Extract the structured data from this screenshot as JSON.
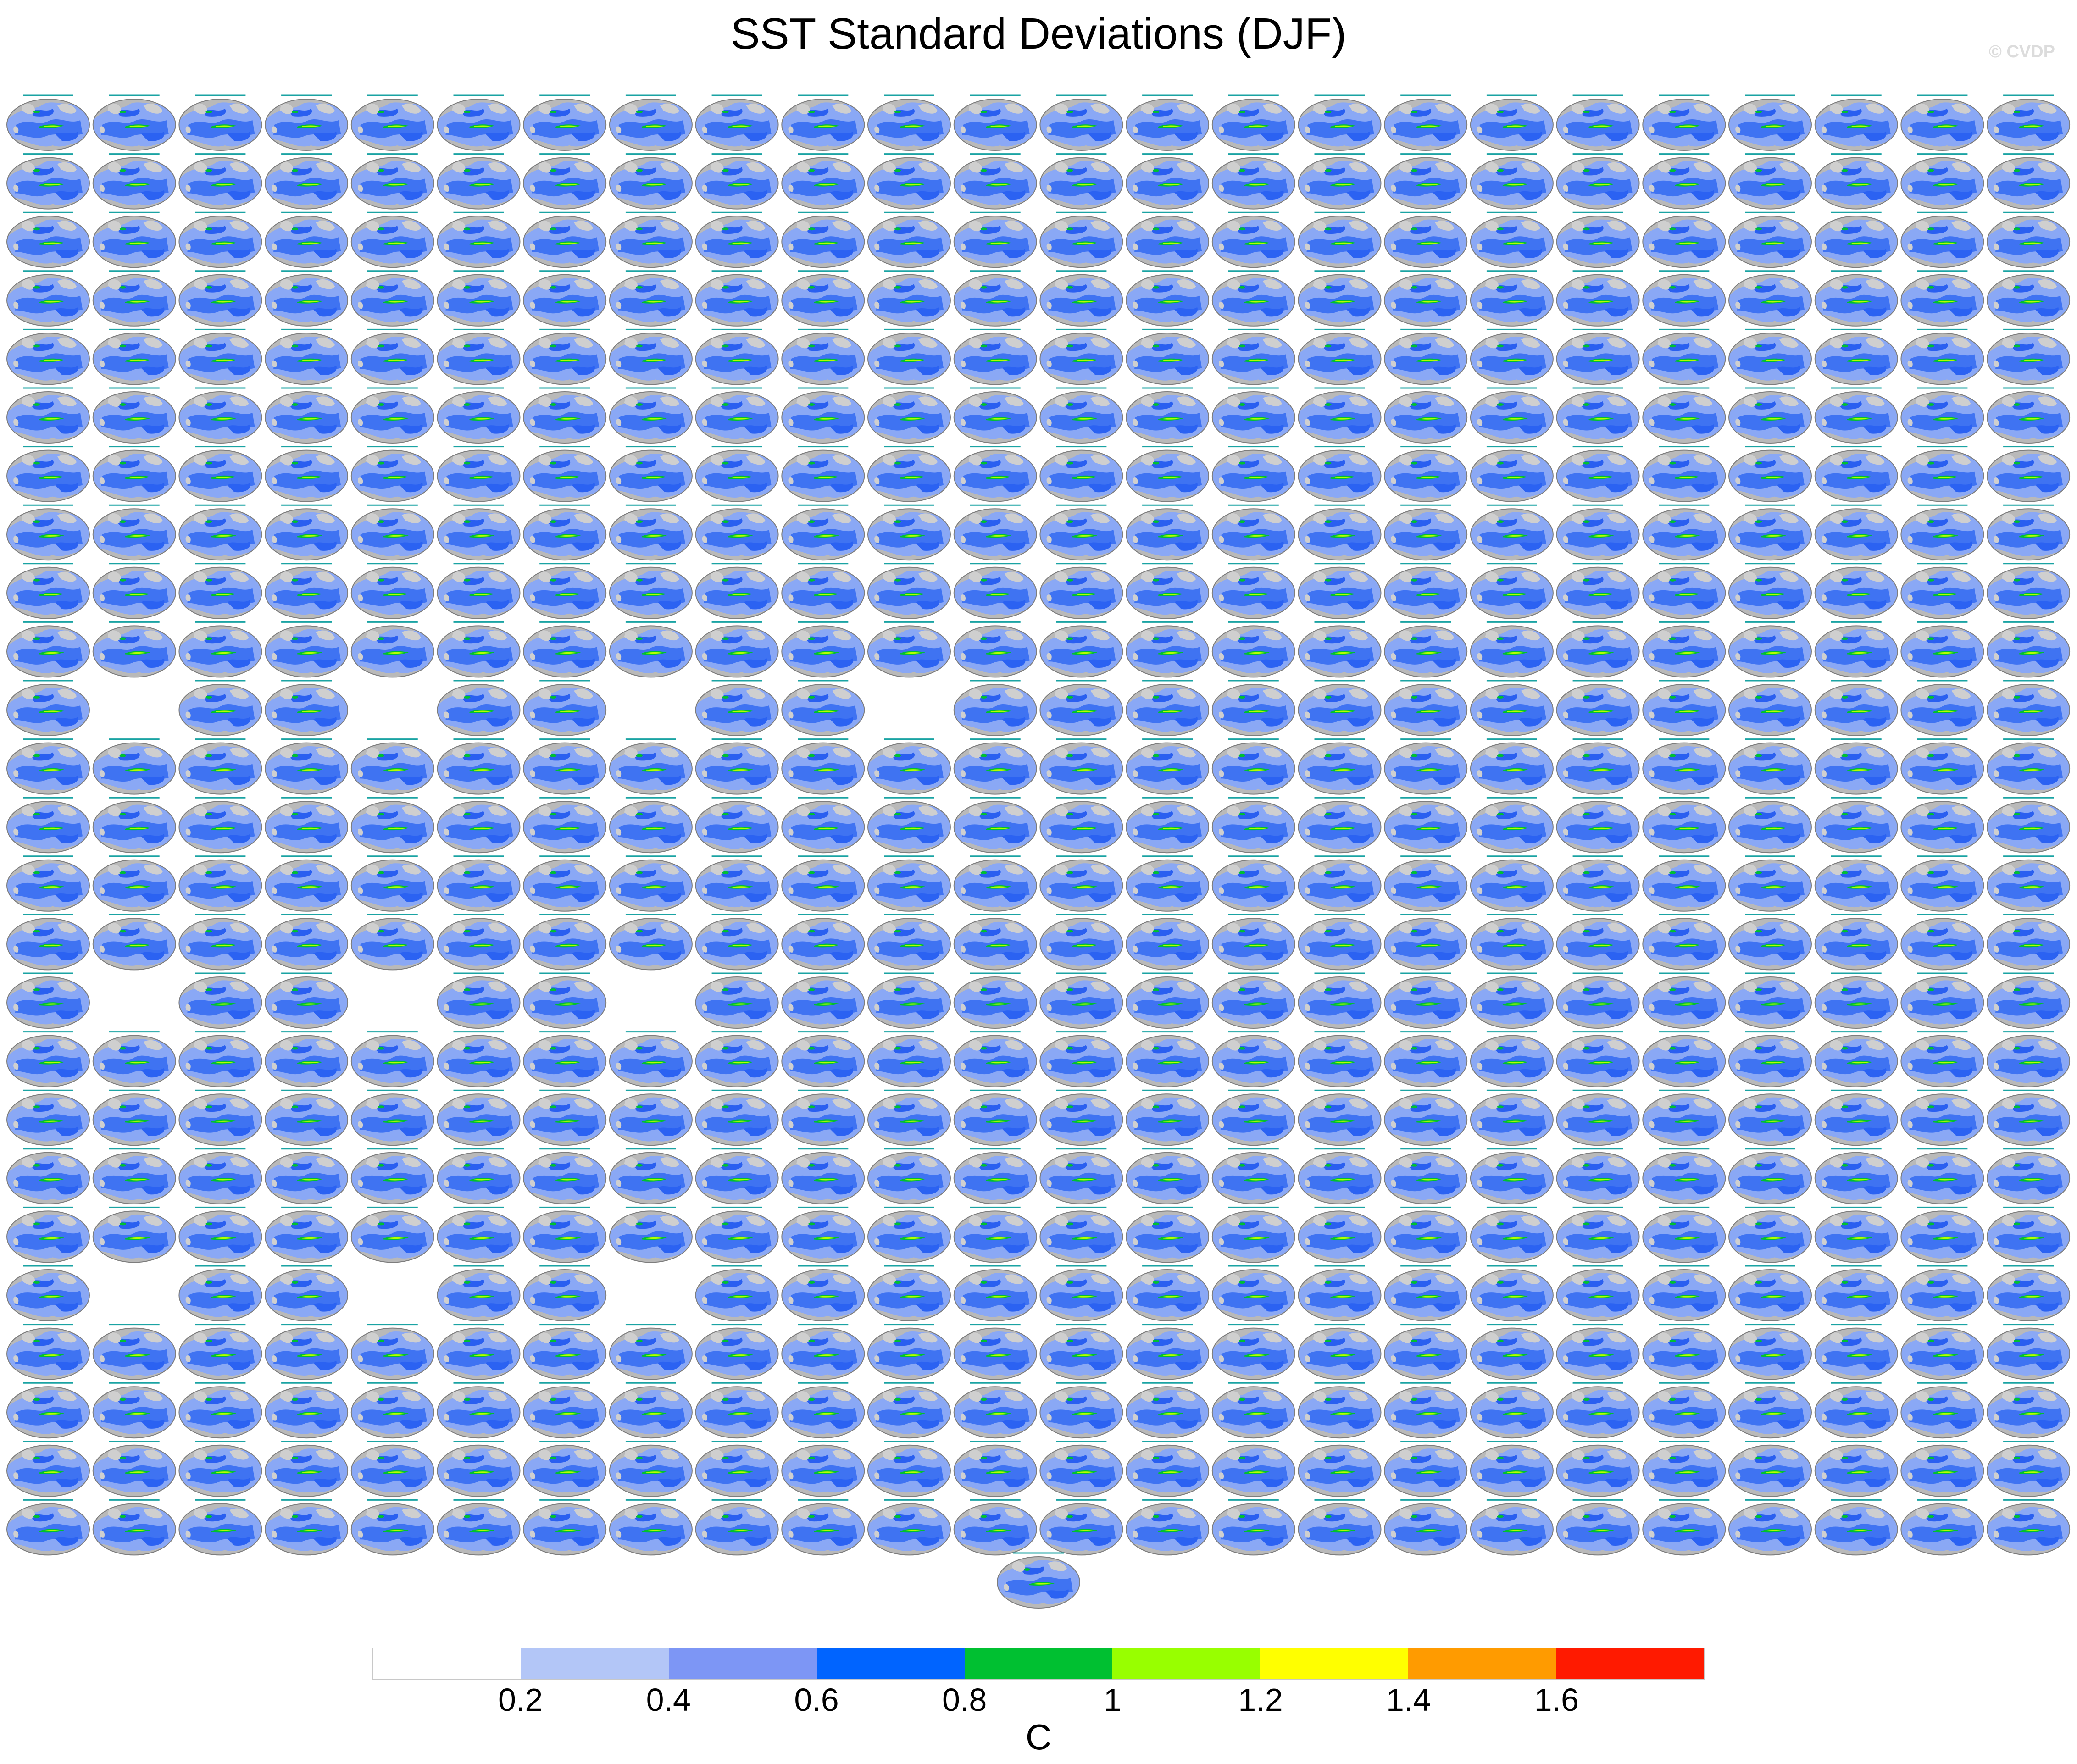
{
  "title": "SST Standard Deviations (DJF)",
  "watermark": "© CVDP",
  "chart_data": {
    "type": "panel-grid of global contour maps",
    "grid": {
      "columns": 24,
      "rows": 25,
      "extra_bottom_panels": 1
    },
    "blank_cells": [
      {
        "row": 11,
        "cols": [
          2,
          5,
          8,
          11
        ]
      },
      {
        "row": 16,
        "cols": [
          2,
          5,
          8
        ]
      },
      {
        "row": 21,
        "cols": [
          2,
          5,
          8
        ]
      }
    ],
    "panel_content": "SST standard deviation map, Robinson-style projection",
    "colorbar": {
      "colors": [
        "#ffffff",
        "#b3c6f7",
        "#7d96f5",
        "#0064ff",
        "#00c031",
        "#98ff00",
        "#ffff00",
        "#ff9b00",
        "#ff1a00"
      ],
      "tick_labels": [
        "0.2",
        "0.4",
        "0.6",
        "0.8",
        "1",
        "1.2",
        "1.4",
        "1.6"
      ],
      "units": "C"
    }
  }
}
